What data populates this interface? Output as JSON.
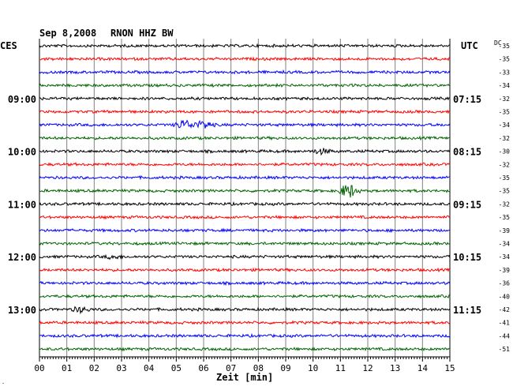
{
  "header": {
    "date": "Sep 8,2008",
    "station": "RNON HHZ BW",
    "left_tz": "CES",
    "right_tz": "UTC",
    "dc_label": "DC"
  },
  "chart_data": {
    "type": "line",
    "title": "Sep 8,2008   RNON HHZ BW",
    "xlabel": "Zeit [min]",
    "x_ticks": [
      "00",
      "01",
      "02",
      "03",
      "04",
      "05",
      "06",
      "07",
      "08",
      "09",
      "10",
      "11",
      "12",
      "13",
      "14",
      "15"
    ],
    "xlim": [
      0,
      15
    ],
    "grid": true,
    "row_count": 24,
    "row_colors": [
      "#000000",
      "#ff0000",
      "#0000ff",
      "#006400"
    ],
    "left_time_labels": [
      {
        "row": 4,
        "text": "09:00"
      },
      {
        "row": 8,
        "text": "10:00"
      },
      {
        "row": 12,
        "text": "11:00"
      },
      {
        "row": 16,
        "text": "12:00"
      },
      {
        "row": 20,
        "text": "13:00"
      }
    ],
    "right_time_labels": [
      {
        "row": 4,
        "text": "07:15"
      },
      {
        "row": 8,
        "text": "08:15"
      },
      {
        "row": 12,
        "text": "09:15"
      },
      {
        "row": 16,
        "text": "10:15"
      },
      {
        "row": 20,
        "text": "11:15"
      }
    ],
    "dc_offsets": [
      "-35",
      "-35",
      "-33",
      "-34",
      "-32",
      "-35",
      "-34",
      "-32",
      "-30",
      "-32",
      "-35",
      "-35",
      "-32",
      "-35",
      "-39",
      "-34",
      "-34",
      "-39",
      "-36",
      "-40",
      "-42",
      "-41",
      "-44",
      "-51"
    ],
    "events": [
      {
        "row": 6,
        "minute": 5.3,
        "amplitude": 6
      },
      {
        "row": 6,
        "minute": 6.0,
        "amplitude": 5
      },
      {
        "row": 11,
        "minute": 11.3,
        "amplitude": 9
      },
      {
        "row": 8,
        "minute": 10.3,
        "amplitude": 3
      },
      {
        "row": 16,
        "minute": 2.7,
        "amplitude": 2
      },
      {
        "row": 20,
        "minute": 1.5,
        "amplitude": 3
      }
    ]
  }
}
